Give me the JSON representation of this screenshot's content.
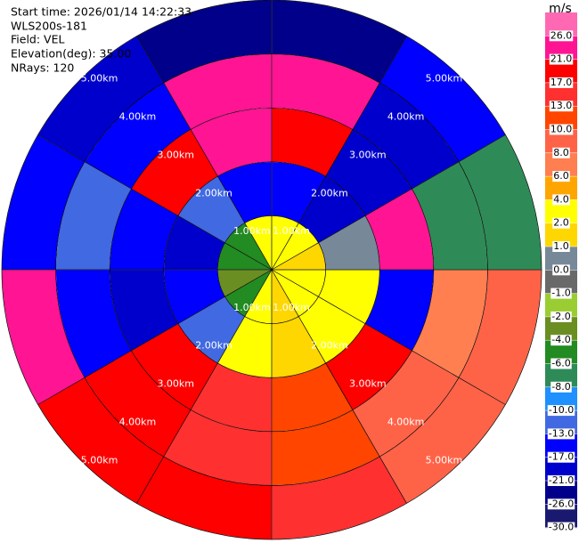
{
  "header": {
    "start_time": "Start time: 2026/01/14 14:22:33",
    "instrument": "WLS200s-181",
    "field": "Field: VEL",
    "elevation": "Elevation(deg): 35.00",
    "nrays": "NRays: 120"
  },
  "chart_data": {
    "type": "ppi",
    "rlim": [
      0,
      5
    ],
    "rings": [
      {
        "value": 1,
        "label": "1.00km"
      },
      {
        "value": 2,
        "label": "2.00km"
      },
      {
        "value": 3,
        "label": "3.00km"
      },
      {
        "value": 4,
        "label": "4.00km"
      },
      {
        "value": 5,
        "label": "5.00km"
      }
    ],
    "values": [
      [
        3,
        3,
        2,
        3,
        3,
        2,
        3,
        -4,
        -2,
        -4,
        -4,
        3
      ],
      [
        -13,
        -17,
        1,
        3,
        3,
        2,
        3,
        -10,
        -13,
        -17,
        -10,
        -13
      ],
      [
        21,
        -17,
        26,
        -13,
        21,
        13,
        17,
        21,
        -17,
        -13,
        21,
        26
      ],
      [
        26,
        -17,
        -6,
        8,
        10,
        13,
        17,
        21,
        -13,
        -10,
        -13,
        26
      ],
      [
        -21,
        -13,
        -6,
        10,
        10,
        17,
        21,
        21,
        26,
        -13,
        -17,
        -21
      ]
    ],
    "colorbar": {
      "title": "m/s",
      "ticks": [
        {
          "value": 26,
          "label": "26.0"
        },
        {
          "value": 21,
          "label": "21.0"
        },
        {
          "value": 17,
          "label": "17.0"
        },
        {
          "value": 13,
          "label": "13.0"
        },
        {
          "value": 10,
          "label": "10.0"
        },
        {
          "value": 8,
          "label": "8.0"
        },
        {
          "value": 6,
          "label": "6.0"
        },
        {
          "value": 4,
          "label": "4.0"
        },
        {
          "value": 2,
          "label": "2.0"
        },
        {
          "value": 1,
          "label": "1.0"
        },
        {
          "value": 0,
          "label": "0.0"
        },
        {
          "value": -1,
          "label": "-1.0"
        },
        {
          "value": -2,
          "label": "-2.0"
        },
        {
          "value": -4,
          "label": "-4.0"
        },
        {
          "value": -6,
          "label": "-6.0"
        },
        {
          "value": -8,
          "label": "-8.0"
        },
        {
          "value": -10,
          "label": "-10.0"
        },
        {
          "value": -13,
          "label": "-13.0"
        },
        {
          "value": -17,
          "label": "-17.0"
        },
        {
          "value": -21,
          "label": "-21.0"
        },
        {
          "value": -26,
          "label": "-26.0"
        },
        {
          "value": -30,
          "label": "-30.0"
        }
      ],
      "colors": [
        "#ff69b4",
        "#ff1493",
        "#ff0000",
        "#ff3030",
        "#ff4500",
        "#ff6347",
        "#ff7f50",
        "#ffa500",
        "#ffff00",
        "#ffd700",
        "#778899",
        "#696969",
        "#9acd32",
        "#6b8e23",
        "#228b22",
        "#2e8b57",
        "#1e90ff",
        "#4169e1",
        "#0000ff",
        "#0000cd",
        "#00008b",
        "#191970"
      ]
    }
  }
}
